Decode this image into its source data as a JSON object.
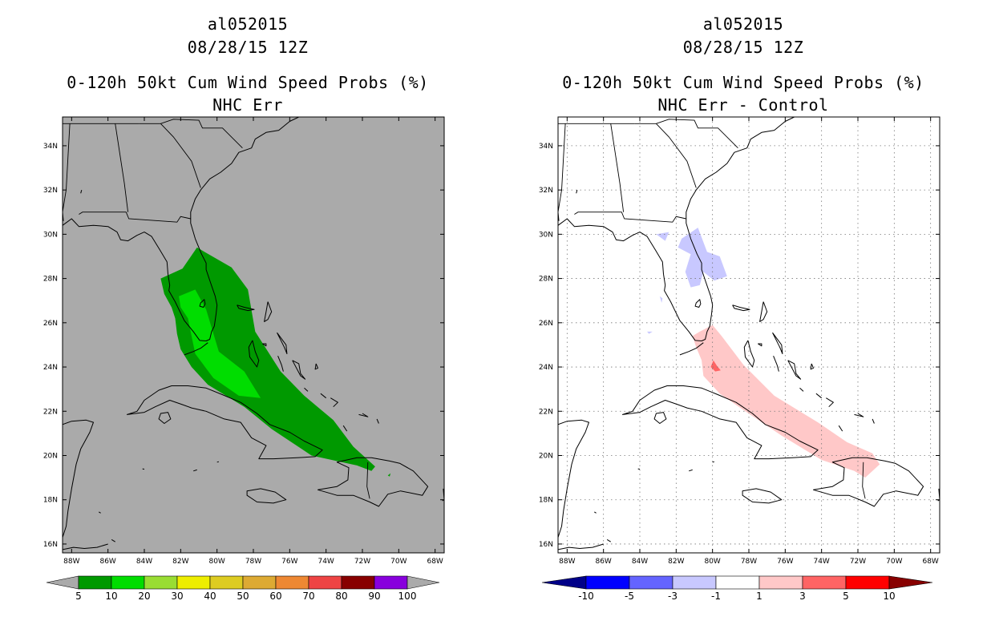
{
  "colors": {
    "map_bg_left": "#aaaaaa",
    "map_bg_right": "#ffffff",
    "prob_5": "#009900",
    "prob_10": "#00dd00",
    "diff_neg": "#c8c8ff",
    "diff_pos": "#ffc8c8",
    "diff_pos_high": "#ff6464"
  },
  "left_panel": {
    "storm_id": "al052015",
    "datetime": "08/28/15 12Z",
    "product": "0-120h 50kt Cum Wind Speed Probs (%)",
    "subtitle": "NHC Err"
  },
  "right_panel": {
    "storm_id": "al052015",
    "datetime": "08/28/15 12Z",
    "product": "0-120h 50kt Cum Wind Speed Probs (%)",
    "subtitle": "NHC Err - Control"
  },
  "map": {
    "lat_range": [
      15.6,
      35.3
    ],
    "lon_range": [
      -88.5,
      -67.5
    ],
    "lat_labels": [
      "16N",
      "18N",
      "20N",
      "22N",
      "24N",
      "26N",
      "28N",
      "30N",
      "32N",
      "34N"
    ],
    "lat_values": [
      16,
      18,
      20,
      22,
      24,
      26,
      28,
      30,
      32,
      34
    ],
    "lon_labels": [
      "88W",
      "86W",
      "84W",
      "82W",
      "80W",
      "78W",
      "76W",
      "74W",
      "72W",
      "70W",
      "68W"
    ],
    "lon_values": [
      -88,
      -86,
      -84,
      -82,
      -80,
      -78,
      -76,
      -74,
      -72,
      -70,
      -68
    ]
  },
  "left_colorbar": {
    "labels": [
      "5",
      "10",
      "20",
      "30",
      "40",
      "50",
      "60",
      "70",
      "80",
      "90",
      "100"
    ],
    "colors": [
      "#aaaaaa",
      "#009900",
      "#00dd00",
      "#99dd33",
      "#eeee00",
      "#ddcc22",
      "#ddaa33",
      "#ee8833",
      "#ee4444",
      "#880000",
      "#8800dd",
      "#aaaaaa"
    ]
  },
  "right_colorbar": {
    "labels": [
      "-10",
      "-5",
      "-3",
      "-1",
      "1",
      "3",
      "5",
      "10"
    ],
    "colors": [
      "#000088",
      "#0000ff",
      "#6464ff",
      "#c8c8ff",
      "#ffffff",
      "#ffc8c8",
      "#ff6464",
      "#ff0000",
      "#880000"
    ]
  }
}
